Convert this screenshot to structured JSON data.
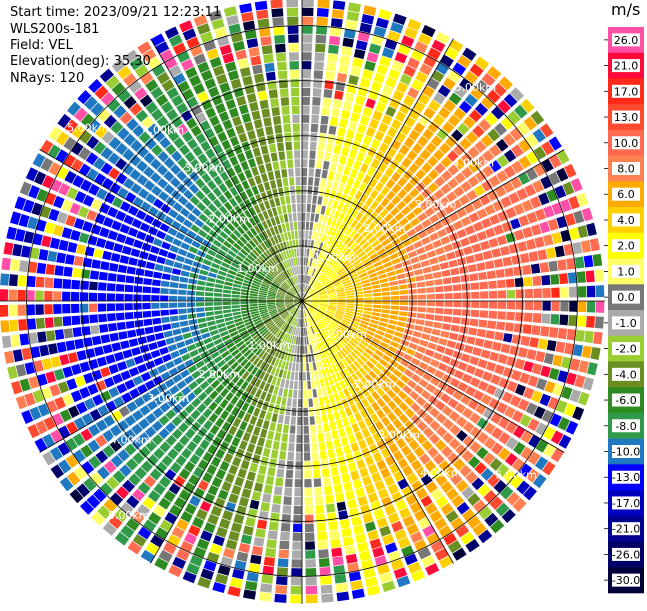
{
  "header": {
    "start_time": "Start time: 2023/09/21 12:23:11",
    "instrument": "WLS200s-181",
    "field": "Field: VEL",
    "elevation": "Elevation(deg): 35.30",
    "nrays": "NRays: 120"
  },
  "colorbar": {
    "unit": "m/s",
    "levels": [
      "26.0",
      "21.0",
      "17.0",
      "13.0",
      "10.0",
      "8.0",
      "6.0",
      "4.0",
      "2.0",
      "1.0",
      "0.0",
      "-1.0",
      "-2.0",
      "-4.0",
      "-6.0",
      "-8.0",
      "-10.0",
      "-13.0",
      "-17.0",
      "-21.0",
      "-26.0",
      "-30.0"
    ],
    "colors": [
      "#ff4fa7",
      "#ff0a3a",
      "#ff2a1a",
      "#ff4a30",
      "#ff6a50",
      "#ff8050",
      "#ffaa00",
      "#ffd000",
      "#ffff00",
      "#ffff66",
      "#777777",
      "#aaaaaa",
      "#9acd32",
      "#6b8e23",
      "#2e8b22",
      "#2f9a4a",
      "#1f78c0",
      "#0000ff",
      "#0000c0",
      "#000090",
      "#000066",
      "#00003a"
    ]
  },
  "chart_data": {
    "type": "ppi",
    "field": "VEL",
    "n_rays": 120,
    "ring_labels": [
      "1.00km",
      "2.00km",
      "3.00km",
      "4.00km",
      "5.00km"
    ],
    "ring_ranges_km": [
      1,
      2,
      3,
      4,
      5
    ],
    "max_range_km": 5.5,
    "vmin": -30,
    "vmax": 30
  }
}
